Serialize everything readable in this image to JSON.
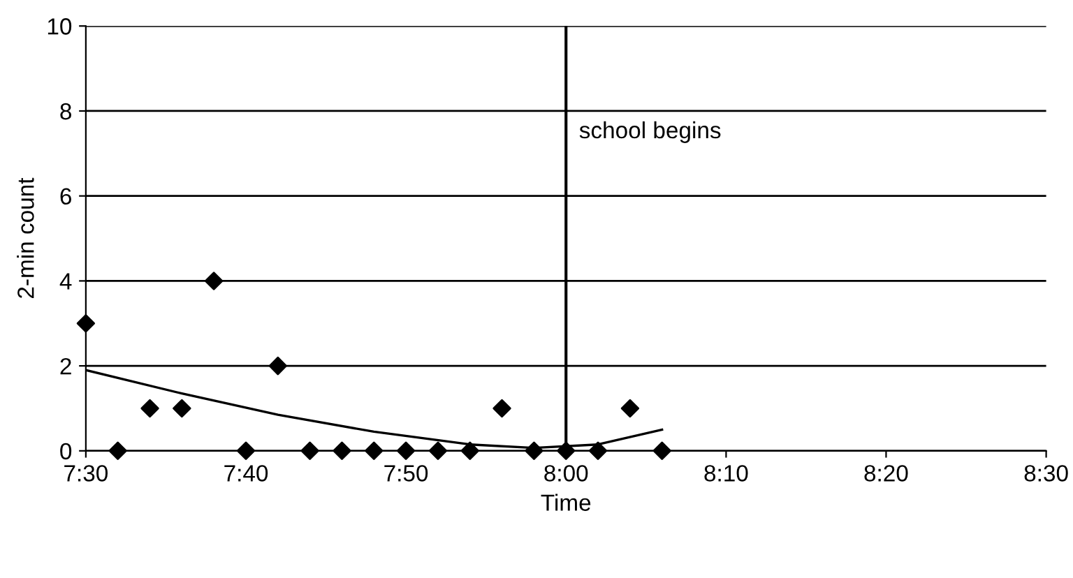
{
  "chart_data": {
    "type": "scatter",
    "xlabel": "Time",
    "ylabel": "2-min count",
    "x": [
      7.5,
      7.5333,
      7.5667,
      7.6,
      7.6333,
      7.6667,
      7.7,
      7.7333,
      7.7667,
      7.8,
      7.8333,
      7.8667,
      7.9,
      7.9333,
      7.9667,
      8.0,
      8.0333,
      8.0667,
      8.1
    ],
    "series": [
      {
        "color": "#000000",
        "marker": "diamond",
        "values": [
          3,
          0,
          1,
          1,
          4,
          0,
          2,
          0,
          0,
          0,
          0,
          0,
          0,
          1,
          0,
          0,
          0,
          1,
          0
        ]
      },
      {
        "type": "line",
        "color": "#000000",
        "marker": "none",
        "x": [
          7.5,
          7.6,
          7.7,
          7.8,
          7.9,
          7.9667,
          8.0333,
          8.1
        ],
        "values": [
          1.9,
          1.35,
          0.85,
          0.45,
          0.15,
          0.07,
          0.15,
          0.5
        ]
      }
    ],
    "xlim": [
      7.5,
      8.5
    ],
    "xticks": [
      {
        "value": 7.5,
        "label": "7:30"
      },
      {
        "value": 7.6667,
        "label": "7:40"
      },
      {
        "value": 7.8333,
        "label": "7:50"
      },
      {
        "value": 8.0,
        "label": "8:00"
      },
      {
        "value": 8.1667,
        "label": "8:10"
      },
      {
        "value": 8.3333,
        "label": "8:20"
      },
      {
        "value": 8.5,
        "label": "8:30"
      }
    ],
    "ylim": [
      0,
      10
    ],
    "yticks": [
      0,
      2,
      4,
      6,
      8,
      10
    ],
    "grid": "y",
    "ref_lines": [
      {
        "axis": "x",
        "value": 8.0,
        "label": "school begins",
        "color": "#000000"
      }
    ]
  }
}
